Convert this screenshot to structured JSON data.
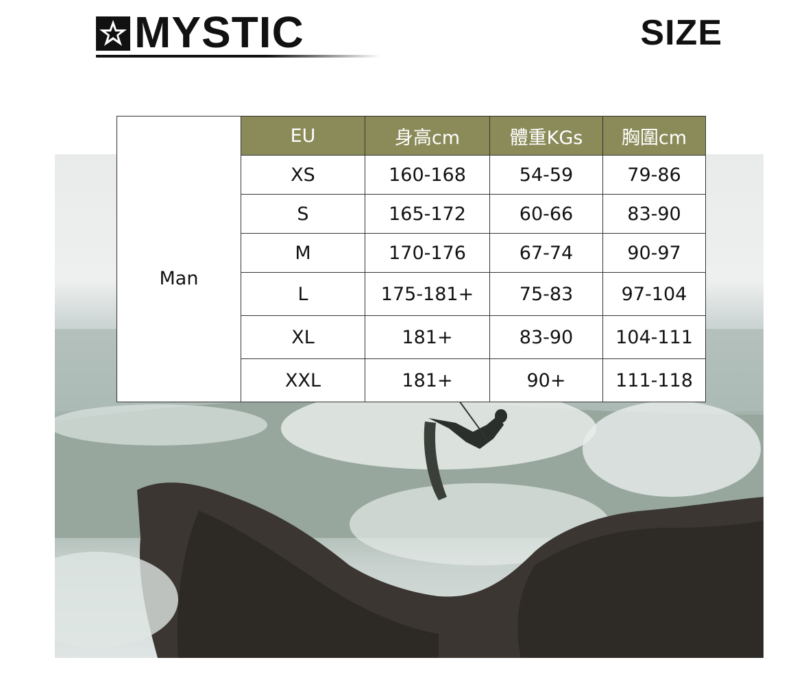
{
  "brand": {
    "name": "MYSTIC",
    "logo_icon": "mystic-star-icon"
  },
  "page_title": "SIZE",
  "colors": {
    "header_bg": "#8b8b5a",
    "text": "#111111"
  },
  "size_table": {
    "group_label": "Man",
    "headers": [
      "EU",
      "身高cm",
      "體重KGs",
      "胸圍cm"
    ],
    "rows": [
      [
        "XS",
        "160-168",
        "54-59",
        "79-86"
      ],
      [
        "S",
        "165-172",
        "60-66",
        "83-90"
      ],
      [
        "M",
        "170-176",
        "67-74",
        "90-97"
      ],
      [
        "L",
        "175-181+",
        "75-83",
        "97-104"
      ],
      [
        "XL",
        "181+",
        "83-90",
        "104-111"
      ],
      [
        "XXL",
        "181+",
        "90+",
        "111-118"
      ]
    ]
  }
}
